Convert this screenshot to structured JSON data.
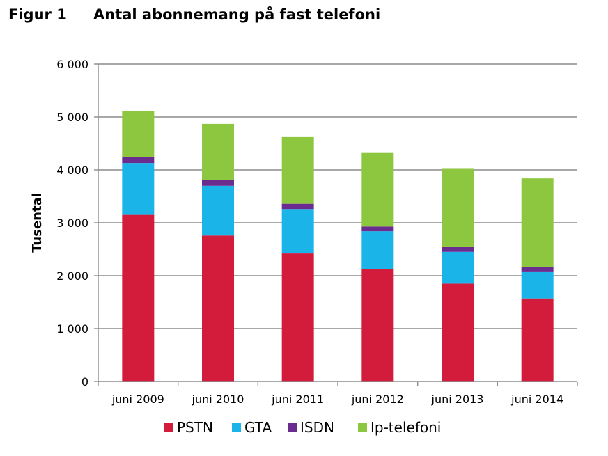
{
  "figure": {
    "label": "Figur 1",
    "title": "Antal abonnemang på fast telefoni"
  },
  "chart_data": {
    "type": "bar",
    "stacked": true,
    "categories": [
      "juni 2009",
      "juni 2010",
      "juni 2011",
      "juni 2012",
      "juni 2013",
      "juni 2014"
    ],
    "series": [
      {
        "name": "PSTN",
        "color": "#d31c3c",
        "values": [
          3150,
          2760,
          2420,
          2130,
          1850,
          1570
        ]
      },
      {
        "name": "GTA",
        "color": "#1ab4e8",
        "values": [
          980,
          940,
          840,
          710,
          600,
          510
        ]
      },
      {
        "name": "ISDN",
        "color": "#6a2d8f",
        "values": [
          110,
          110,
          100,
          90,
          90,
          90
        ]
      },
      {
        "name": "Ip-telefoni",
        "color": "#8dc63f",
        "values": [
          870,
          1060,
          1260,
          1390,
          1480,
          1670
        ]
      }
    ],
    "ylabel": "Tusental",
    "xlabel": "",
    "ylim": [
      0,
      6000
    ],
    "yticks": [
      0,
      1000,
      2000,
      3000,
      4000,
      5000,
      6000
    ],
    "ytick_labels": [
      "0",
      "1 000",
      "2 000",
      "3 000",
      "4 000",
      "5 000",
      "6 000"
    ],
    "grid": true,
    "legend_position": "bottom"
  }
}
